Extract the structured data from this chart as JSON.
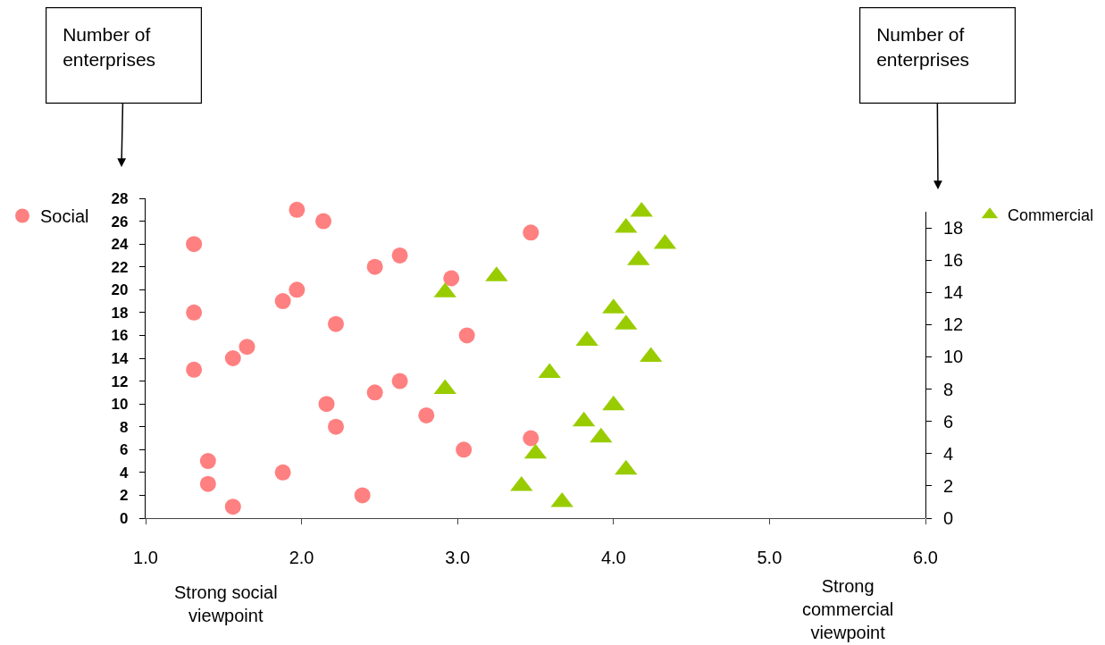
{
  "chart_data": {
    "type": "scatter",
    "annotations": [
      "Number of enterprises",
      "Number of enterprises",
      "Strong social viewpoint",
      "Strong commercial viewpoint"
    ],
    "xlim": [
      1,
      6
    ],
    "xticks": [
      {
        "value": 1,
        "label": "1.0"
      },
      {
        "value": 2,
        "label": "2.0"
      },
      {
        "value": 3,
        "label": "3.0"
      },
      {
        "value": 4,
        "label": "4.0"
      },
      {
        "value": 5,
        "label": "5.0"
      },
      {
        "value": 6,
        "label": "6.0"
      }
    ],
    "ylim": [
      0,
      28
    ],
    "yticks": [
      0,
      2,
      4,
      6,
      8,
      10,
      12,
      14,
      16,
      18,
      20,
      22,
      24,
      26,
      28
    ],
    "y2lim": [
      0,
      19
    ],
    "y2ticks": [
      0,
      2,
      4,
      6,
      8,
      10,
      12,
      14,
      16,
      18
    ],
    "legend": "top",
    "series": [
      {
        "name": "Social",
        "color": "#ff8080",
        "marker": "circle",
        "x": [
          1.56,
          2.39,
          1.4,
          1.88,
          1.4,
          3.04,
          3.47,
          2.22,
          2.8,
          2.16,
          2.47,
          2.63,
          1.31,
          1.56,
          1.65,
          3.06,
          2.22,
          1.31,
          1.88,
          1.97,
          2.96,
          2.47,
          2.63,
          1.31,
          3.47,
          2.14,
          1.97
        ],
        "values": [
          1,
          2,
          3,
          4,
          5,
          6,
          7,
          8,
          9,
          10,
          11,
          12,
          13,
          14,
          15,
          16,
          17,
          18,
          19,
          20,
          21,
          22,
          23,
          24,
          25,
          26,
          27
        ]
      },
      {
        "name": "Commercial",
        "color": "#99cc00",
        "marker": "triangle",
        "axis": "y2",
        "x": [
          3.67,
          3.41,
          4.08,
          3.5,
          3.92,
          3.81,
          4.0,
          2.92,
          3.59,
          4.24,
          3.83,
          4.08,
          4.0,
          2.92,
          3.25,
          4.16,
          4.33,
          4.08,
          4.18
        ],
        "values": [
          1,
          2,
          3,
          4,
          5,
          6,
          7,
          8,
          9,
          10,
          11,
          12,
          13,
          14,
          15,
          16,
          17,
          18,
          19
        ]
      }
    ]
  }
}
